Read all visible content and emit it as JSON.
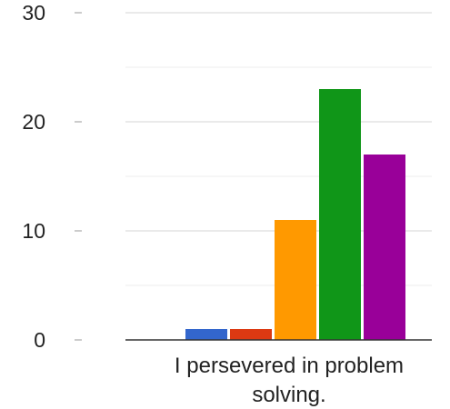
{
  "chart_data": {
    "type": "bar",
    "categories": [
      "I persevered in problem solving."
    ],
    "category_label_lines": [
      "I persevered in problem",
      "solving."
    ],
    "series": [
      {
        "values": [
          1
        ],
        "color": "#3366cc"
      },
      {
        "values": [
          1
        ],
        "color": "#dc3912"
      },
      {
        "values": [
          11
        ],
        "color": "#ff9900"
      },
      {
        "values": [
          23
        ],
        "color": "#109618"
      },
      {
        "values": [
          17
        ],
        "color": "#990099"
      }
    ],
    "title": "",
    "xlabel": "",
    "ylabel": "",
    "ylim": [
      0,
      30
    ],
    "yticks": [
      0,
      10,
      20,
      30
    ],
    "ytick_labels": [
      "0",
      "10",
      "20",
      "30"
    ],
    "minor_gridlines": [
      5,
      15,
      25
    ],
    "grid": true,
    "legend": "none"
  }
}
